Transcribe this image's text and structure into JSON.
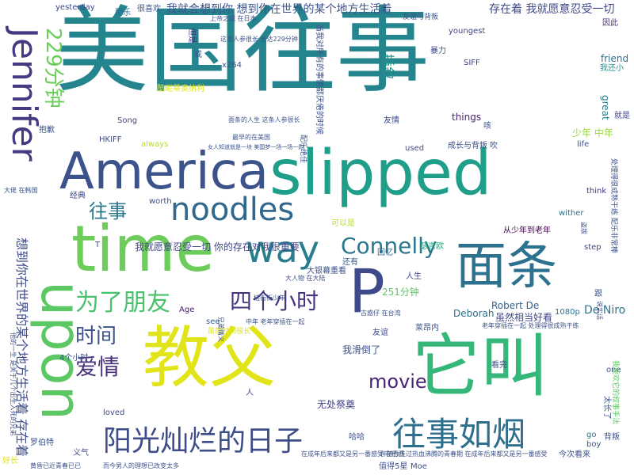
{
  "words": [
    {
      "text": "美国往事",
      "color": "#25858e",
      "size": 118
    },
    {
      "text": "slipped",
      "color": "#1f9e89",
      "size": 78
    },
    {
      "text": "time",
      "color": "#6ccd5a",
      "size": 80
    },
    {
      "text": "upon",
      "color": "#5cc863",
      "size": 70
    },
    {
      "text": "America",
      "color": "#3b528b",
      "size": 64
    },
    {
      "text": "教父",
      "color": "#e1e418",
      "size": 84
    },
    {
      "text": "它叫",
      "color": "#35b779",
      "size": 86
    },
    {
      "text": "P",
      "color": "#3e4a89",
      "size": 76
    },
    {
      "text": "面条",
      "color": "#2c728e",
      "size": 64
    },
    {
      "text": "way",
      "color": "#287d8e",
      "size": 46
    },
    {
      "text": "Jennifer",
      "color": "#443983",
      "size": 44
    },
    {
      "text": "noodles",
      "color": "#31688e",
      "size": 40
    },
    {
      "text": "往事如烟",
      "color": "#2e6f8e",
      "size": 42
    },
    {
      "text": "阳光灿烂的日子",
      "color": "#3e4c8a",
      "size": 36
    },
    {
      "text": "Connelly",
      "color": "#2a778e",
      "size": 28
    },
    {
      "text": "为了朋友",
      "color": "#4ac16d",
      "size": 30
    },
    {
      "text": "四个小时",
      "color": "#46337f",
      "size": 28
    },
    {
      "text": "爱情",
      "color": "#472f7d",
      "size": 28
    },
    {
      "text": "时间",
      "color": "#3b528b",
      "size": 26
    },
    {
      "text": "229分钟",
      "color": "#6ccd5a",
      "size": 26
    },
    {
      "text": "往事",
      "color": "#2a788e",
      "size": 24
    },
    {
      "text": "movie",
      "color": "#482475",
      "size": 24
    },
    {
      "text": "我就会想到你  想到你在世界的某个地方生活着",
      "color": "#3b528b",
      "size": 14
    },
    {
      "text": "存在着 我就愿意忍受一切",
      "color": "#3f4889",
      "size": 14
    },
    {
      "text": "我就愿意忍受一切 你的存在对我很重要",
      "color": "#404688",
      "size": 12
    },
    {
      "text": "想到你在世界的某个地方生活着 存在着",
      "color": "#3e4c8a",
      "size": 16
    },
    {
      "text": "Robert De",
      "color": "#34618d",
      "size": 12
    },
    {
      "text": "De Niro",
      "color": "#2c738e",
      "size": 14
    },
    {
      "text": "Deborah",
      "color": "#2d708e",
      "size": 12
    },
    {
      "text": "虽然相当好看",
      "color": "#3f4788",
      "size": 12
    },
    {
      "text": "我滑倒了",
      "color": "#3b528b",
      "size": 12
    },
    {
      "text": "无处祭奠",
      "color": "#414287",
      "size": 12
    },
    {
      "text": "成长与背叛",
      "color": "#3d4e8a",
      "size": 10
    },
    {
      "text": "少年 中年",
      "color": "#9bd93c",
      "size": 12
    },
    {
      "text": "插叙",
      "color": "#21918c",
      "size": 16
    },
    {
      "text": "things",
      "color": "#482173",
      "size": 12
    },
    {
      "text": "great",
      "color": "#27808e",
      "size": 12
    },
    {
      "text": "friend",
      "color": "#2c718e",
      "size": 12
    },
    {
      "text": "我还小",
      "color": "#20928c",
      "size": 10
    },
    {
      "text": "就是",
      "color": "#3f4788",
      "size": 10
    },
    {
      "text": "友情",
      "color": "#3e4989",
      "size": 10
    },
    {
      "text": "251分钟",
      "color": "#5cc863",
      "size": 12
    },
    {
      "text": "人生",
      "color": "#3e4a89",
      "size": 10
    },
    {
      "text": "瑟吉欧",
      "color": "#26ad81",
      "size": 10
    },
    {
      "text": "还有",
      "color": "#38588c",
      "size": 10
    },
    {
      "text": "大银幕重看",
      "color": "#3b528b",
      "size": 10
    },
    {
      "text": "回忆",
      "color": "#31688e",
      "size": 10
    },
    {
      "text": "可以是",
      "color": "#b5de2b",
      "size": 10
    },
    {
      "text": "从少年到老年",
      "color": "#440154",
      "size": 10
    },
    {
      "text": "HKIFF",
      "color": "#3e4989",
      "size": 10
    },
    {
      "text": "always",
      "color": "#b5de2b",
      "size": 10
    },
    {
      "text": "Song",
      "color": "#3f4788",
      "size": 10
    },
    {
      "text": "很喜欢",
      "color": "#3b528b",
      "size": 10
    },
    {
      "text": "yesterday",
      "color": "#3e4989",
      "size": 10
    },
    {
      "text": "配乐",
      "color": "#2e6e8e",
      "size": 10
    },
    {
      "text": "但是",
      "color": "#46327e",
      "size": 10
    },
    {
      "text": "或",
      "color": "#3b528b",
      "size": 10
    },
    {
      "text": "暴力",
      "color": "#3f4889",
      "size": 10
    },
    {
      "text": "youngest",
      "color": "#414487",
      "size": 10
    },
    {
      "text": "因此",
      "color": "#472c7a",
      "size": 10
    },
    {
      "text": "SIFF",
      "color": "#3e4989",
      "size": 10
    },
    {
      "text": "x264",
      "color": "#3b528b",
      "size": 10
    },
    {
      "text": "1080p",
      "color": "#2c728e",
      "size": 10
    },
    {
      "text": "Age",
      "color": "#482071",
      "size": 10
    },
    {
      "text": "see",
      "color": "#355e8d",
      "size": 10
    },
    {
      "text": "used",
      "color": "#3e4989",
      "size": 10
    },
    {
      "text": "life",
      "color": "#3b528b",
      "size": 10
    },
    {
      "text": "think",
      "color": "#46337f",
      "size": 10
    },
    {
      "text": "wither",
      "color": "#2c728e",
      "size": 10
    },
    {
      "text": "step",
      "color": "#3f4788",
      "size": 10
    },
    {
      "text": "one",
      "color": "#3b528b",
      "size": 10
    },
    {
      "text": "go",
      "color": "#2e6f8e",
      "size": 10
    },
    {
      "text": "boy",
      "color": "#3b528b",
      "size": 10
    },
    {
      "text": "loved",
      "color": "#3f4788",
      "size": 10
    },
    {
      "text": "worth",
      "color": "#3b528b",
      "size": 10
    },
    {
      "text": "经典",
      "color": "#3e4989",
      "size": 10
    },
    {
      "text": "罗伯特",
      "color": "#3b528b",
      "size": 10
    },
    {
      "text": "义气",
      "color": "#3e4989",
      "size": 10
    },
    {
      "text": "哈哈",
      "color": "#3b528b",
      "size": 10
    },
    {
      "text": "背叛",
      "color": "#3b528b",
      "size": 10
    },
    {
      "text": "人",
      "color": "#3b528b",
      "size": 10
    },
    {
      "text": "今次看来",
      "color": "#3b528b",
      "size": 10
    },
    {
      "text": "太长了",
      "color": "#3b528b",
      "size": 10
    },
    {
      "text": "看完",
      "color": "#3b528b",
      "size": 10
    },
    {
      "text": "值得5星",
      "color": "#3b528b",
      "size": 10
    },
    {
      "text": "Moe",
      "color": "#3b528b",
      "size": 10
    },
    {
      "text": "好长",
      "color": "#dde318",
      "size": 10
    },
    {
      "text": "莱昂内",
      "color": "#3b528b",
      "size": 10
    },
    {
      "text": "友谊",
      "color": "#3e4989",
      "size": 10
    },
    {
      "text": "跟",
      "color": "#3b528b",
      "size": 10
    },
    {
      "text": "吹",
      "color": "#3b528b",
      "size": 10
    },
    {
      "text": "抱歉",
      "color": "#3b528b",
      "size": 10
    },
    {
      "text": "T",
      "color": "#3b528b",
      "size": 10
    },
    {
      "text": "咳",
      "color": "#3b528b",
      "size": 10
    },
    {
      "text": "4个小时",
      "color": "#3b528b",
      "size": 10
    },
    {
      "text": "酷昵蒂奥纳利",
      "color": "#dde318",
      "size": 10
    },
    {
      "text": "这条人参很长 长达229分钟",
      "color": "#3b528b",
      "size": 8
    },
    {
      "text": "面条的人生 这条人参很长",
      "color": "#3b528b",
      "size": 8
    },
    {
      "text": "大佬 在韩国",
      "color": "#3b528b",
      "size": 8
    },
    {
      "text": "友谊与背叛",
      "color": "#3b528b",
      "size": 9
    },
    {
      "text": "上帝之城 在日本",
      "color": "#3b528b",
      "size": 8
    },
    {
      "text": "中年 老年穿插在一起",
      "color": "#3b528b",
      "size": 8
    },
    {
      "text": "大人物 在大陆",
      "color": "#3b528b",
      "size": 8
    },
    {
      "text": "虽然时间很长",
      "color": "#dde318",
      "size": 9
    },
    {
      "text": "古惑仔 在台湾",
      "color": "#3b528b",
      "size": 8
    },
    {
      "text": "老年穿插在一起 处理得很成熟干练",
      "color": "#3b528b",
      "size": 8
    },
    {
      "text": "在成年后来都又是另一番感受 在巴西",
      "color": "#3b528b",
      "size": 8
    },
    {
      "text": "伴随你走过热血沸腾的青春期 在成年后来都又是另一番感受",
      "color": "#3b528b",
      "size": 8
    },
    {
      "text": "黄昏已近青春已已",
      "color": "#3b528b",
      "size": 8
    },
    {
      "text": "而今男人的理想已改变太多",
      "color": "#3b528b",
      "size": 8
    },
    {
      "text": "最早的在美国",
      "color": "#3b528b",
      "size": 8
    },
    {
      "text": "女人知道就是一块 美国梦一场一场一的",
      "color": "#3b528b",
      "size": 7
    },
    {
      "text": "当我对所有的事情都厌倦的时候",
      "color": "#3b528b",
      "size": 10
    },
    {
      "text": "配乐绝佳",
      "color": "#3b528b",
      "size": 9
    },
    {
      "text": "兄弟情义",
      "color": "#3b528b",
      "size": 8
    },
    {
      "text": "我要欢它的叙事手法",
      "color": "#5cc863",
      "size": 9
    },
    {
      "text": "处理得很成熟干练 配乐非常棒",
      "color": "#3b528b",
      "size": 9
    },
    {
      "text": "说实话",
      "color": "#3b528b",
      "size": 8
    },
    {
      "text": "他的一生 是关于几个出生入死的兄弟",
      "color": "#3b528b",
      "size": 8
    },
    {
      "text": "盗版",
      "color": "#3b528b",
      "size": 8
    },
    {
      "text": "桔街街少年",
      "color": "#3b528b",
      "size": 8
    }
  ]
}
